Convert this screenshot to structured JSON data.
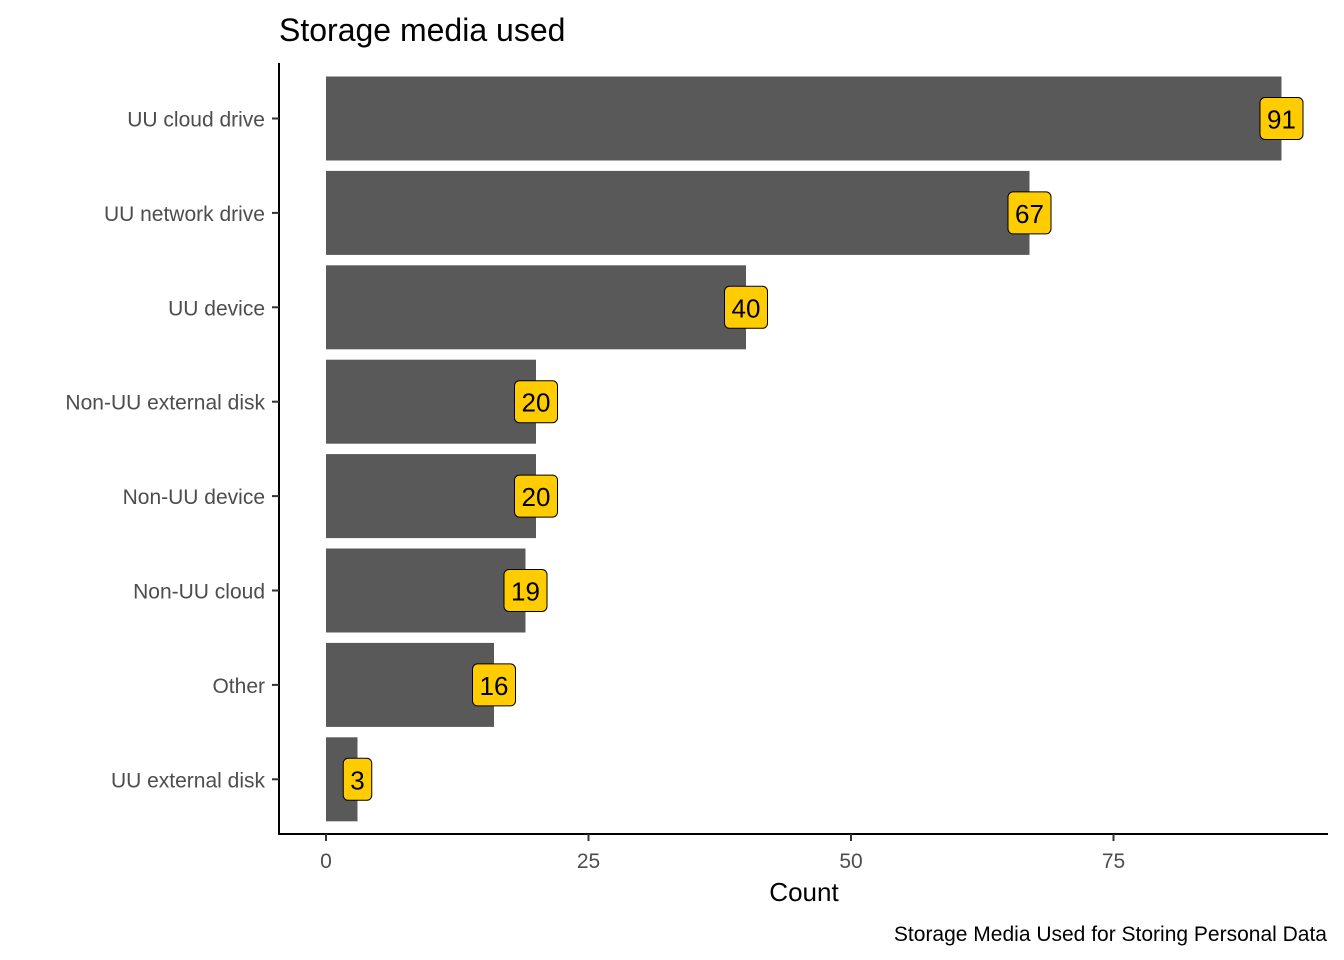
{
  "chart_data": {
    "type": "bar",
    "orientation": "horizontal",
    "title": "Storage media used",
    "xlabel": "Count",
    "ylabel": "",
    "caption": "Storage Media Used for Storing Personal Data",
    "categories": [
      "UU cloud drive",
      "UU network drive",
      "UU device",
      "Non-UU external disk",
      "Non-UU device",
      "Non-UU cloud",
      "Other",
      "UU external disk"
    ],
    "values": [
      91,
      67,
      40,
      20,
      20,
      19,
      16,
      3
    ],
    "xlim": [
      0,
      95
    ],
    "xticks": [
      0,
      25,
      50,
      75
    ],
    "xtick_labels": [
      "0",
      "25",
      "50",
      "75"
    ],
    "grid": false,
    "legend": "none",
    "colors": {
      "bar": "#595959",
      "label_fill": "#ffcc00",
      "label_border": "#000000",
      "axis": "#000000",
      "tick_text": "#4d4d4d"
    }
  }
}
